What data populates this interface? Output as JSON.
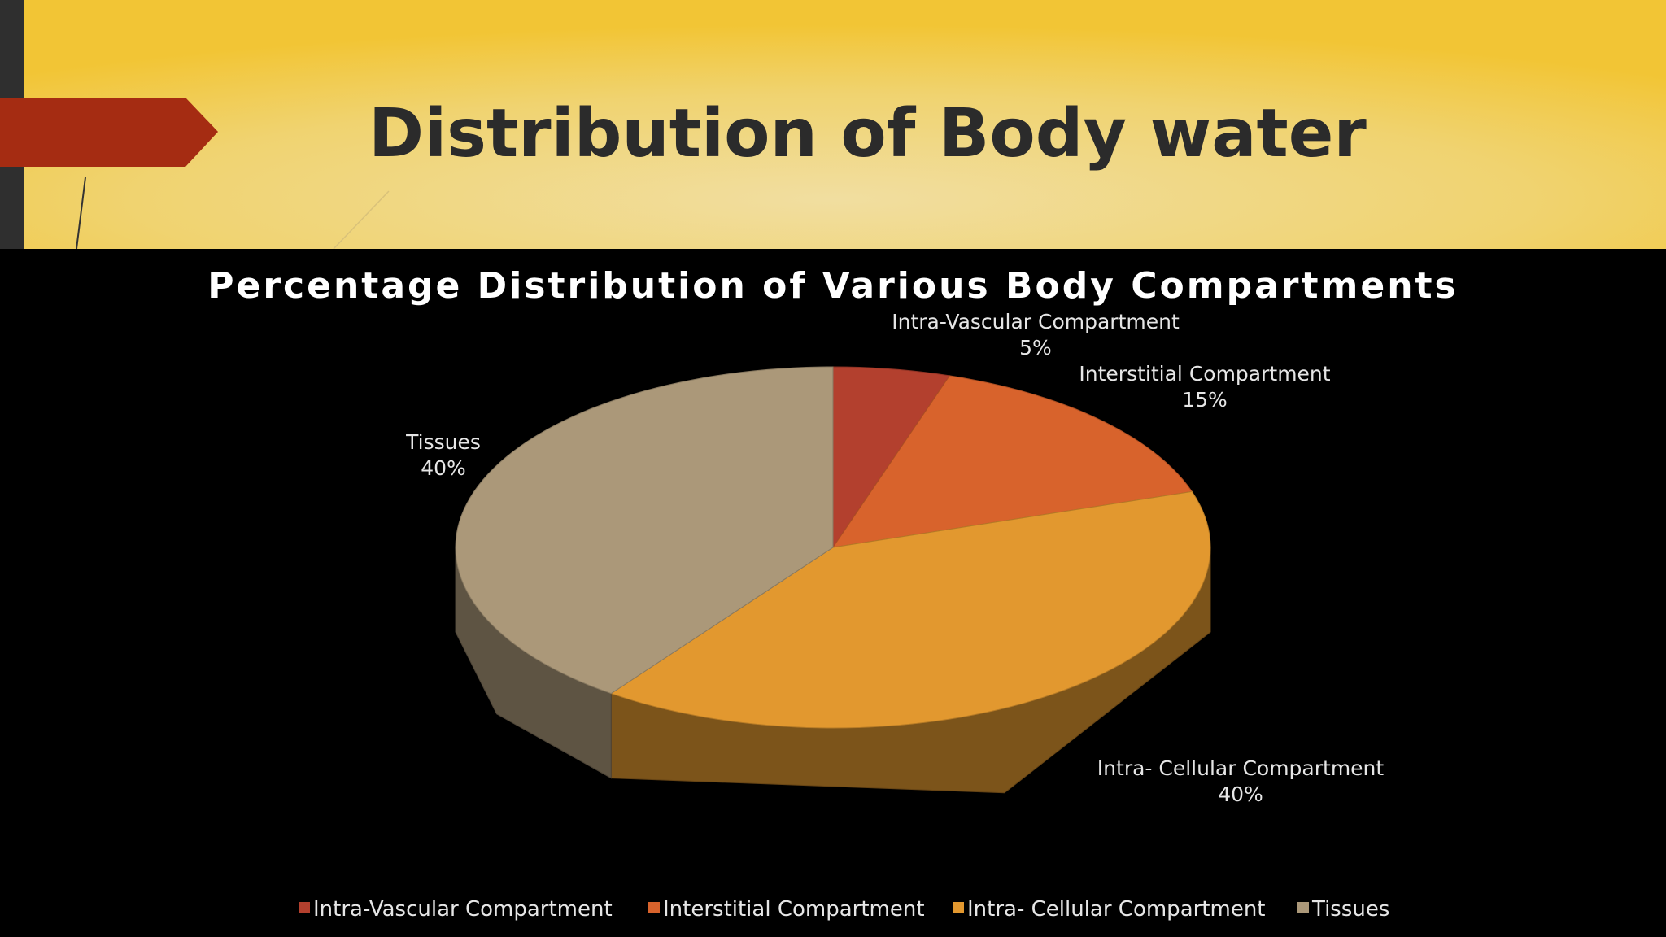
{
  "slide": {
    "title": "Distribution of Body water"
  },
  "chart_data": {
    "type": "pie",
    "title": "Percentage Distribution of Various Body Compartments",
    "categories": [
      "Intra-Vascular Compartment",
      "Interstitial Compartment",
      "Intra- Cellular Compartment",
      "Tissues"
    ],
    "values": [
      5,
      15,
      40,
      40
    ],
    "value_labels": [
      "5%",
      "15%",
      "40%",
      "40%"
    ],
    "colors": [
      "#b3402e",
      "#d8632c",
      "#e2982f",
      "#ab9879"
    ],
    "legend": "bottom"
  }
}
